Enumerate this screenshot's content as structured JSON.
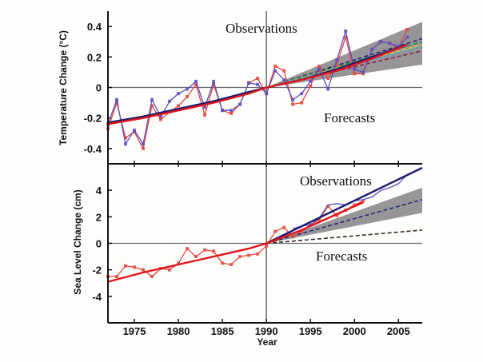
{
  "chart_data": [
    {
      "type": "line",
      "title": "",
      "xlabel": "",
      "ylabel": "Temperature Change (°C)",
      "xlim": [
        1972,
        2007.7
      ],
      "ylim": [
        -0.5,
        0.5
      ],
      "yticks": [
        0.4,
        0.2,
        0,
        -0.2,
        -0.4
      ],
      "ytick_labels": [
        "0.4",
        "0.2",
        "0",
        "-0.2",
        "-0.4"
      ],
      "grid": false,
      "reference_lines": {
        "y": 0,
        "x": 1990
      },
      "annotations": [
        "Observations",
        "Forecasts"
      ],
      "series": [
        {
          "name": "observations-red",
          "color": "#e8453c",
          "marker": "square",
          "x": [
            1972,
            1973,
            1974,
            1975,
            1976,
            1977,
            1978,
            1979,
            1980,
            1981,
            1982,
            1983,
            1984,
            1985,
            1986,
            1987,
            1988,
            1989,
            1990,
            1991,
            1992,
            1993,
            1994,
            1995,
            1996,
            1997,
            1998,
            1999,
            2000,
            2001,
            2002,
            2003,
            2004,
            2005,
            2006
          ],
          "values": [
            -0.27,
            -0.1,
            -0.33,
            -0.29,
            -0.4,
            -0.12,
            -0.21,
            -0.16,
            -0.12,
            -0.06,
            0.02,
            -0.18,
            0.02,
            -0.15,
            -0.17,
            -0.11,
            0.03,
            0.06,
            -0.04,
            0.14,
            0.11,
            -0.11,
            -0.1,
            0.01,
            0.14,
            0.06,
            0.15,
            0.33,
            0.09,
            0.09,
            0.25,
            0.3,
            0.29,
            0.26,
            0.38
          ]
        },
        {
          "name": "observations-blue",
          "color": "#5a4fc4",
          "marker": "square",
          "x": [
            1972,
            1973,
            1974,
            1975,
            1976,
            1977,
            1978,
            1979,
            1980,
            1981,
            1982,
            1983,
            1984,
            1985,
            1986,
            1987,
            1988,
            1989,
            1990,
            1991,
            1992,
            1993,
            1994,
            1995,
            1996,
            1997,
            1998,
            1999,
            2000,
            2001,
            2002,
            2003,
            2004,
            2005,
            2006
          ],
          "values": [
            -0.24,
            -0.08,
            -0.37,
            -0.28,
            -0.37,
            -0.08,
            -0.19,
            -0.09,
            -0.04,
            -0.01,
            0.04,
            -0.13,
            0.04,
            -0.15,
            -0.15,
            -0.11,
            0.03,
            0.02,
            -0.04,
            0.11,
            0.05,
            -0.08,
            -0.04,
            0.04,
            0.12,
            -0.01,
            0.18,
            0.37,
            0.12,
            0.1,
            0.25,
            0.3,
            0.29,
            0.27,
            0.33
          ]
        },
        {
          "name": "trend-blue",
          "color": "#1a1a6e",
          "x": [
            1972,
            1976,
            1980,
            1984,
            1988,
            1990,
            1994,
            1998,
            2002,
            2006
          ],
          "values": [
            -0.23,
            -0.19,
            -0.14,
            -0.09,
            -0.03,
            0.0,
            0.05,
            0.12,
            0.2,
            0.28
          ]
        },
        {
          "name": "trend-red",
          "color": "#e0151b",
          "x": [
            1972,
            1976,
            1980,
            1984,
            1988,
            1990,
            1994,
            1998,
            2002,
            2006
          ],
          "values": [
            -0.24,
            -0.2,
            -0.15,
            -0.1,
            -0.04,
            0.0,
            0.05,
            0.11,
            0.19,
            0.28
          ]
        },
        {
          "name": "projection-range",
          "type": "band",
          "color": "#8d8a8d",
          "x": [
            1990,
            2007.7
          ],
          "lower": [
            0.0,
            0.15
          ],
          "upper": [
            0.0,
            0.43
          ]
        },
        {
          "name": "projections-dashed",
          "type": "dashed",
          "x": [
            1990,
            2007.7
          ],
          "lines": [
            {
              "color": "#222a6e",
              "end": 0.32
            },
            {
              "color": "#2f8a3a",
              "end": 0.3
            },
            {
              "color": "#e8d21c",
              "end": 0.28
            },
            {
              "color": "#3aa0d8",
              "end": 0.27
            },
            {
              "color": "#8b1d4a",
              "end": 0.24
            }
          ]
        }
      ]
    },
    {
      "type": "line",
      "title": "",
      "xlabel": "Year",
      "ylabel": "Sea Level Change (cm)",
      "xlim": [
        1972,
        2007.7
      ],
      "ylim": [
        -6,
        6
      ],
      "yticks": [
        4,
        2,
        0,
        -2,
        -4
      ],
      "ytick_labels": [
        "4",
        "2",
        "0",
        "-2",
        "-4"
      ],
      "xticks": [
        1975,
        1980,
        1985,
        1990,
        1995,
        2000,
        2005
      ],
      "xtick_labels": [
        "1975",
        "1980",
        "1985",
        "1990",
        "1995",
        "2000",
        "2005"
      ],
      "grid": false,
      "reference_lines": {
        "y": 0,
        "x": 1990
      },
      "annotations": [
        "Observations",
        "Forecasts"
      ],
      "series": [
        {
          "name": "tide-gauge-red",
          "color": "#e8453c",
          "marker": "square",
          "x": [
            1972,
            1973,
            1974,
            1975,
            1976,
            1977,
            1978,
            1979,
            1980,
            1981,
            1982,
            1983,
            1984,
            1985,
            1986,
            1987,
            1988,
            1989,
            1990,
            1991,
            1992,
            1993,
            1994,
            1995,
            1996,
            1997,
            1998,
            1999,
            2000,
            2001
          ],
          "values": [
            -2.5,
            -2.5,
            -1.7,
            -1.8,
            -2.0,
            -2.5,
            -1.9,
            -2.0,
            -1.5,
            -0.4,
            -1.0,
            -0.5,
            -0.6,
            -1.5,
            -1.6,
            -1.0,
            -0.9,
            -0.8,
            -0.2,
            0.9,
            1.2,
            0.5,
            0.9,
            1.4,
            1.8,
            2.8,
            2.1,
            2.5,
            2.9,
            3.2
          ]
        },
        {
          "name": "satellite-blue",
          "color": "#5a4fc4",
          "x": [
            1993,
            1994,
            1995,
            1996,
            1997,
            1998,
            1999,
            2000,
            2001,
            2002,
            2003,
            2004,
            2005,
            2006,
            2007
          ],
          "values": [
            1.1,
            1.3,
            1.4,
            1.9,
            2.9,
            3.0,
            2.9,
            3.2,
            3.3,
            3.5,
            4.0,
            4.2,
            4.5,
            5.2,
            5.5
          ]
        },
        {
          "name": "trend-blue",
          "color": "#1a1a6e",
          "x": [
            1990,
            2007.7
          ],
          "values": [
            0.0,
            5.7
          ]
        },
        {
          "name": "trend-red",
          "color": "#e0151b",
          "x": [
            1972,
            1976,
            1980,
            1984,
            1988,
            1990,
            1994,
            1998,
            2001
          ],
          "values": [
            -2.9,
            -2.2,
            -1.6,
            -1.0,
            -0.4,
            0.0,
            1.0,
            2.2,
            3.1
          ]
        },
        {
          "name": "projection-range",
          "type": "band",
          "color": "#8d8a8d",
          "x": [
            1990,
            2007.7
          ],
          "lower": [
            0.0,
            2.3
          ],
          "upper": [
            0.0,
            4.2
          ]
        },
        {
          "name": "projection-central",
          "type": "dashed",
          "color": "#222a6e",
          "x": [
            1990,
            2007.7
          ],
          "values": [
            0.0,
            3.3
          ]
        },
        {
          "name": "projection-low",
          "type": "dashed",
          "color": "#3a2a2a",
          "x": [
            1990,
            2007.7
          ],
          "values": [
            0.0,
            1.0
          ]
        }
      ]
    }
  ],
  "labels": {
    "top_obs": "Observations",
    "top_fc": "Forecasts",
    "bot_obs": "Observations",
    "bot_fc": "Forecasts",
    "top_ylabel": "Temperature Change (°C)",
    "bot_ylabel": "Sea Level Change (cm)",
    "xlabel": "Year"
  }
}
